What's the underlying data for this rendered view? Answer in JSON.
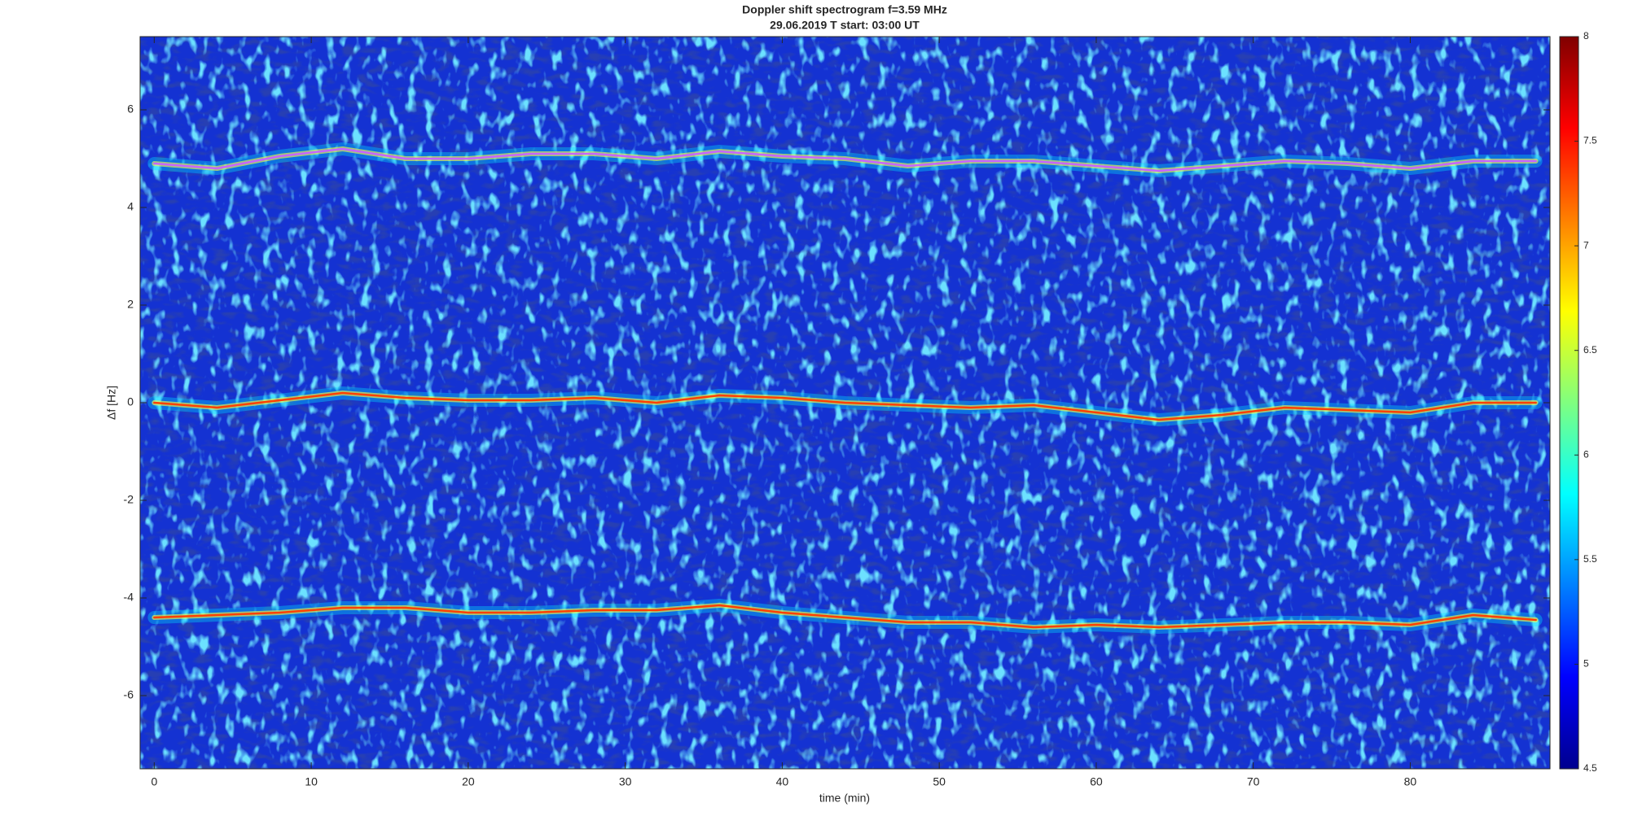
{
  "chart_data": {
    "type": "spectrogram",
    "title": "Doppler shift spectrogram f=3.59 MHz",
    "subtitle": "29.06.2019    T start: 03:00 UT",
    "x_label": "time (min)",
    "y_label": "Δf [Hz]",
    "xlim": [
      -0.9,
      88.9
    ],
    "ylim": [
      -7.5,
      7.5
    ],
    "xticks": [
      0,
      10,
      20,
      30,
      40,
      50,
      60,
      70,
      80
    ],
    "yticks": [
      -6,
      -4,
      -2,
      0,
      2,
      4,
      6
    ],
    "zlim": [
      4.5,
      8
    ],
    "zticks": [
      4.5,
      5,
      5.5,
      6,
      6.5,
      7,
      7.5,
      8
    ],
    "x": [
      0,
      4,
      8,
      12,
      16,
      20,
      24,
      28,
      32,
      36,
      40,
      44,
      48,
      52,
      56,
      60,
      64,
      68,
      72,
      76,
      80,
      84,
      88
    ],
    "series": [
      {
        "color": "#c864ff",
        "values": [
          4.9,
          4.8,
          5.05,
          5.2,
          5.0,
          5.0,
          5.1,
          5.1,
          5.0,
          5.15,
          5.05,
          5.0,
          4.85,
          4.95,
          4.95,
          4.85,
          4.75,
          4.85,
          4.95,
          4.9,
          4.8,
          4.95,
          4.95
        ]
      },
      {
        "color": "#ff4000",
        "values": [
          0,
          -0.1,
          0.05,
          0.2,
          0.1,
          0.05,
          0.05,
          0.1,
          0.0,
          0.15,
          0.1,
          0.0,
          -0.05,
          -0.1,
          -0.05,
          -0.2,
          -0.35,
          -0.25,
          -0.1,
          -0.15,
          -0.2,
          0.0,
          0.0
        ]
      },
      {
        "color": "#ff4000",
        "values": [
          -4.4,
          -4.35,
          -4.3,
          -4.2,
          -4.2,
          -4.3,
          -4.3,
          -4.25,
          -4.25,
          -4.15,
          -4.3,
          -4.4,
          -4.5,
          -4.5,
          -4.6,
          -4.55,
          -4.6,
          -4.55,
          -4.5,
          -4.5,
          -4.55,
          -4.35,
          -4.45
        ]
      }
    ]
  }
}
